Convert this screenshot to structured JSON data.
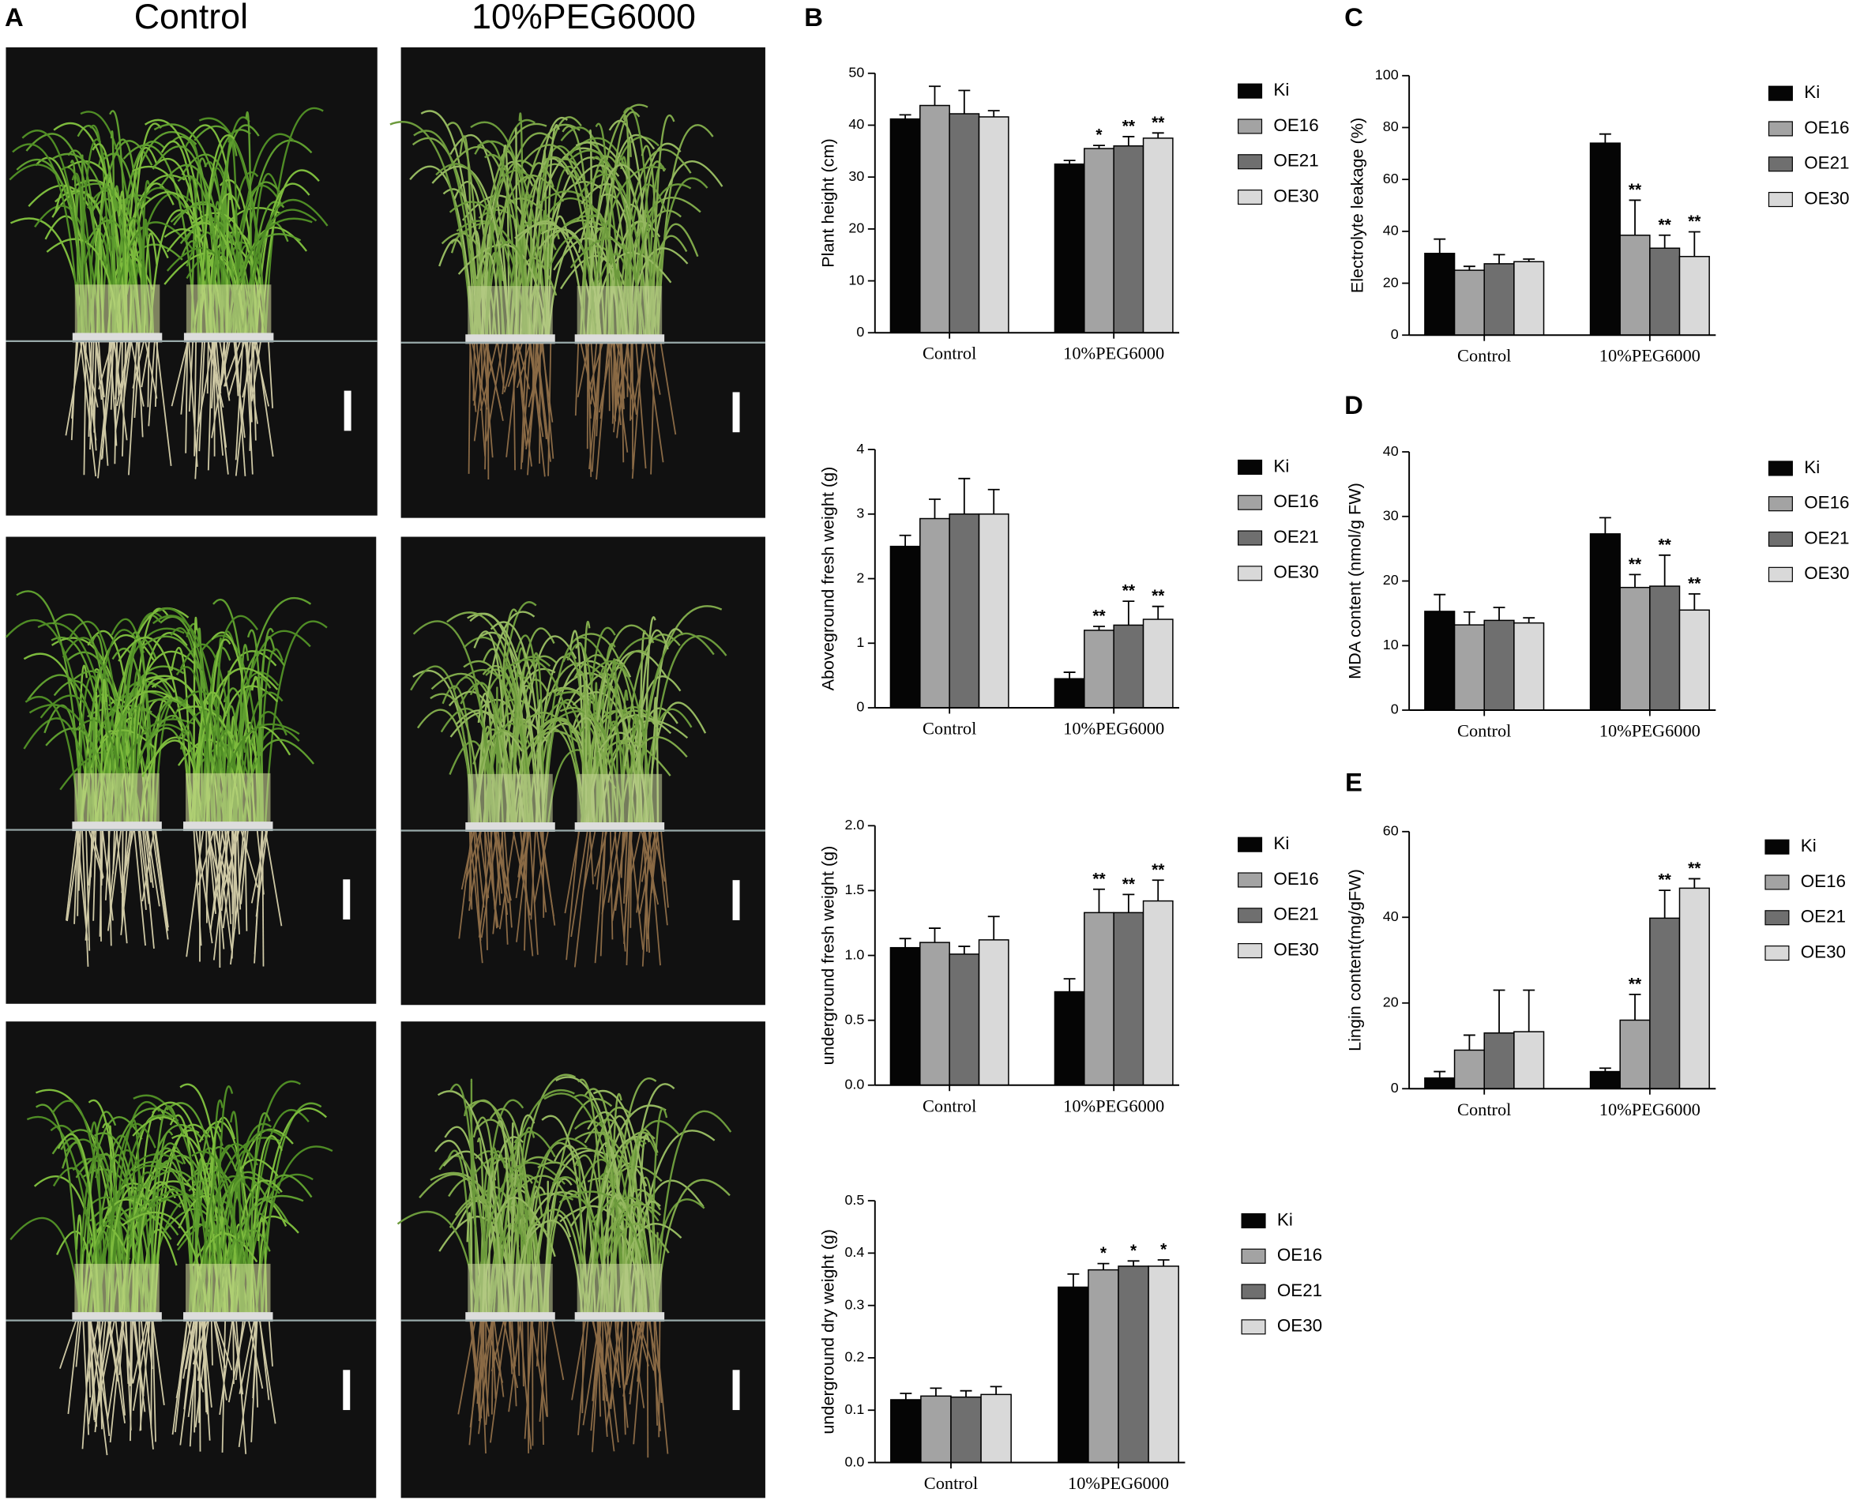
{
  "panel_a": {
    "label": "A",
    "columns": [
      "Control",
      "10%PEG6000"
    ]
  },
  "chart_data": [
    {
      "type": "bar",
      "panel_label": "B",
      "y_label": "Plant height (cm)",
      "categories": [
        "Control",
        "10%PEG6000"
      ],
      "ylim": [
        0,
        50
      ],
      "yticks": [
        0,
        10,
        20,
        30,
        40,
        50
      ],
      "series": [
        {
          "name": "Ki",
          "color": "#050505",
          "values": [
            41.2,
            32.5
          ],
          "errors": [
            0.8,
            0.7
          ],
          "significance": [
            null,
            null
          ]
        },
        {
          "name": "OE16",
          "color": "#a3a3a3",
          "values": [
            43.8,
            35.5
          ],
          "errors": [
            3.7,
            0.6
          ],
          "significance": [
            null,
            "*"
          ]
        },
        {
          "name": "OE21",
          "color": "#6f6f6f",
          "values": [
            42.2,
            36
          ],
          "errors": [
            4.5,
            1.8
          ],
          "significance": [
            null,
            "**"
          ]
        },
        {
          "name": "OE30",
          "color": "#d9d9d9",
          "values": [
            41.6,
            37.5
          ],
          "errors": [
            1.2,
            1
          ],
          "significance": [
            null,
            "**"
          ]
        }
      ]
    },
    {
      "type": "bar",
      "y_label": "Aboveground fresh weight (g)",
      "categories": [
        "Control",
        "10%PEG6000"
      ],
      "ylim": [
        0,
        4
      ],
      "yticks": [
        0,
        1,
        2,
        3,
        4
      ],
      "series": [
        {
          "name": "Ki",
          "color": "#050505",
          "values": [
            2.5,
            0.45
          ],
          "errors": [
            0.17,
            0.1
          ],
          "significance": [
            null,
            null
          ]
        },
        {
          "name": "OE16",
          "color": "#a3a3a3",
          "values": [
            2.93,
            1.2
          ],
          "errors": [
            0.3,
            0.06
          ],
          "significance": [
            null,
            "**"
          ]
        },
        {
          "name": "OE21",
          "color": "#6f6f6f",
          "values": [
            3.0,
            1.28
          ],
          "errors": [
            0.55,
            0.37
          ],
          "significance": [
            null,
            "**"
          ]
        },
        {
          "name": "OE30",
          "color": "#d9d9d9",
          "values": [
            3.0,
            1.37
          ],
          "errors": [
            0.38,
            0.2
          ],
          "significance": [
            null,
            "**"
          ]
        }
      ]
    },
    {
      "type": "bar",
      "y_label": "underground fresh weight (g)",
      "categories": [
        "Control",
        "10%PEG6000"
      ],
      "ylim": [
        0,
        2
      ],
      "yticks": [
        {
          "value": 0,
          "label": "0.0"
        },
        0.5,
        {
          "value": 1,
          "label": "1.0"
        },
        1.5,
        {
          "value": 2,
          "label": "2.0"
        }
      ],
      "series": [
        {
          "name": "Ki",
          "color": "#050505",
          "values": [
            1.06,
            0.72
          ],
          "errors": [
            0.07,
            0.1
          ],
          "significance": [
            null,
            null
          ]
        },
        {
          "name": "OE16",
          "color": "#a3a3a3",
          "values": [
            1.1,
            1.33
          ],
          "errors": [
            0.11,
            0.18
          ],
          "significance": [
            null,
            "**"
          ]
        },
        {
          "name": "OE21",
          "color": "#6f6f6f",
          "values": [
            1.01,
            1.33
          ],
          "errors": [
            0.06,
            0.14
          ],
          "significance": [
            null,
            "**"
          ]
        },
        {
          "name": "OE30",
          "color": "#d9d9d9",
          "values": [
            1.12,
            1.42
          ],
          "errors": [
            0.18,
            0.16
          ],
          "significance": [
            null,
            "**"
          ]
        }
      ]
    },
    {
      "type": "bar",
      "y_label": "underground dry weight (g)",
      "categories": [
        "Control",
        "10%PEG6000"
      ],
      "ylim": [
        0,
        0.5
      ],
      "yticks": [
        {
          "value": 0,
          "label": "0.0"
        },
        0.1,
        0.2,
        0.3,
        0.4,
        0.5
      ],
      "series": [
        {
          "name": "Ki",
          "color": "#050505",
          "values": [
            0.12,
            0.335
          ],
          "errors": [
            0.012,
            0.025
          ],
          "significance": [
            null,
            null
          ]
        },
        {
          "name": "OE16",
          "color": "#a3a3a3",
          "values": [
            0.127,
            0.368
          ],
          "errors": [
            0.015,
            0.012
          ],
          "significance": [
            null,
            "*"
          ]
        },
        {
          "name": "OE21",
          "color": "#6f6f6f",
          "values": [
            0.125,
            0.375
          ],
          "errors": [
            0.012,
            0.01
          ],
          "significance": [
            null,
            "*"
          ]
        },
        {
          "name": "OE30",
          "color": "#d9d9d9",
          "values": [
            0.13,
            0.375
          ],
          "errors": [
            0.015,
            0.012
          ],
          "significance": [
            null,
            "*"
          ]
        }
      ]
    },
    {
      "type": "bar",
      "panel_label": "C",
      "y_label": "Electrolyte leakage (%)",
      "categories": [
        "Control",
        "10%PEG6000"
      ],
      "ylim": [
        0,
        100
      ],
      "yticks": [
        0,
        20,
        40,
        60,
        80,
        100
      ],
      "series": [
        {
          "name": "Ki",
          "color": "#050505",
          "values": [
            31.5,
            74
          ],
          "errors": [
            5.5,
            3.5
          ],
          "significance": [
            null,
            null
          ]
        },
        {
          "name": "OE16",
          "color": "#a3a3a3",
          "values": [
            25,
            38.5
          ],
          "errors": [
            1.5,
            13.5
          ],
          "significance": [
            null,
            "**"
          ]
        },
        {
          "name": "OE21",
          "color": "#6f6f6f",
          "values": [
            27.5,
            33.5
          ],
          "errors": [
            3.5,
            5
          ],
          "significance": [
            null,
            "**"
          ]
        },
        {
          "name": "OE30",
          "color": "#d9d9d9",
          "values": [
            28.3,
            30.3
          ],
          "errors": [
            1,
            9.5
          ],
          "significance": [
            null,
            "**"
          ]
        }
      ]
    },
    {
      "type": "bar",
      "panel_label": "D",
      "y_label": "MDA content (nmol/g FW)",
      "categories": [
        "Control",
        "10%PEG6000"
      ],
      "ylim": [
        0,
        40
      ],
      "yticks": [
        0,
        10,
        20,
        30,
        40
      ],
      "series": [
        {
          "name": "Ki",
          "color": "#050505",
          "values": [
            15.3,
            27.3
          ],
          "errors": [
            2.6,
            2.5
          ],
          "significance": [
            null,
            null
          ]
        },
        {
          "name": "OE16",
          "color": "#a3a3a3",
          "values": [
            13.2,
            19
          ],
          "errors": [
            2,
            2
          ],
          "significance": [
            null,
            "**"
          ]
        },
        {
          "name": "OE21",
          "color": "#6f6f6f",
          "values": [
            13.9,
            19.2
          ],
          "errors": [
            2,
            4.8
          ],
          "significance": [
            null,
            "**"
          ]
        },
        {
          "name": "OE30",
          "color": "#d9d9d9",
          "values": [
            13.5,
            15.5
          ],
          "errors": [
            0.8,
            2.5
          ],
          "significance": [
            null,
            "**"
          ]
        }
      ]
    },
    {
      "type": "bar",
      "panel_label": "E",
      "y_label": "Lingin content(mg/gFW)",
      "categories": [
        "Control",
        "10%PEG6000"
      ],
      "ylim": [
        0,
        60
      ],
      "yticks": [
        0,
        20,
        40,
        60
      ],
      "series": [
        {
          "name": "Ki",
          "color": "#050505",
          "values": [
            2.5,
            4
          ],
          "errors": [
            1.5,
            0.8
          ],
          "significance": [
            null,
            null
          ]
        },
        {
          "name": "OE16",
          "color": "#a3a3a3",
          "values": [
            9,
            16
          ],
          "errors": [
            3.5,
            6
          ],
          "significance": [
            null,
            "**"
          ]
        },
        {
          "name": "OE21",
          "color": "#6f6f6f",
          "values": [
            13,
            39.8
          ],
          "errors": [
            10,
            6.5
          ],
          "significance": [
            null,
            "**"
          ]
        },
        {
          "name": "OE30",
          "color": "#d9d9d9",
          "values": [
            13.3,
            46.8
          ],
          "errors": [
            9.7,
            2.2
          ],
          "significance": [
            null,
            "**"
          ]
        }
      ]
    }
  ]
}
